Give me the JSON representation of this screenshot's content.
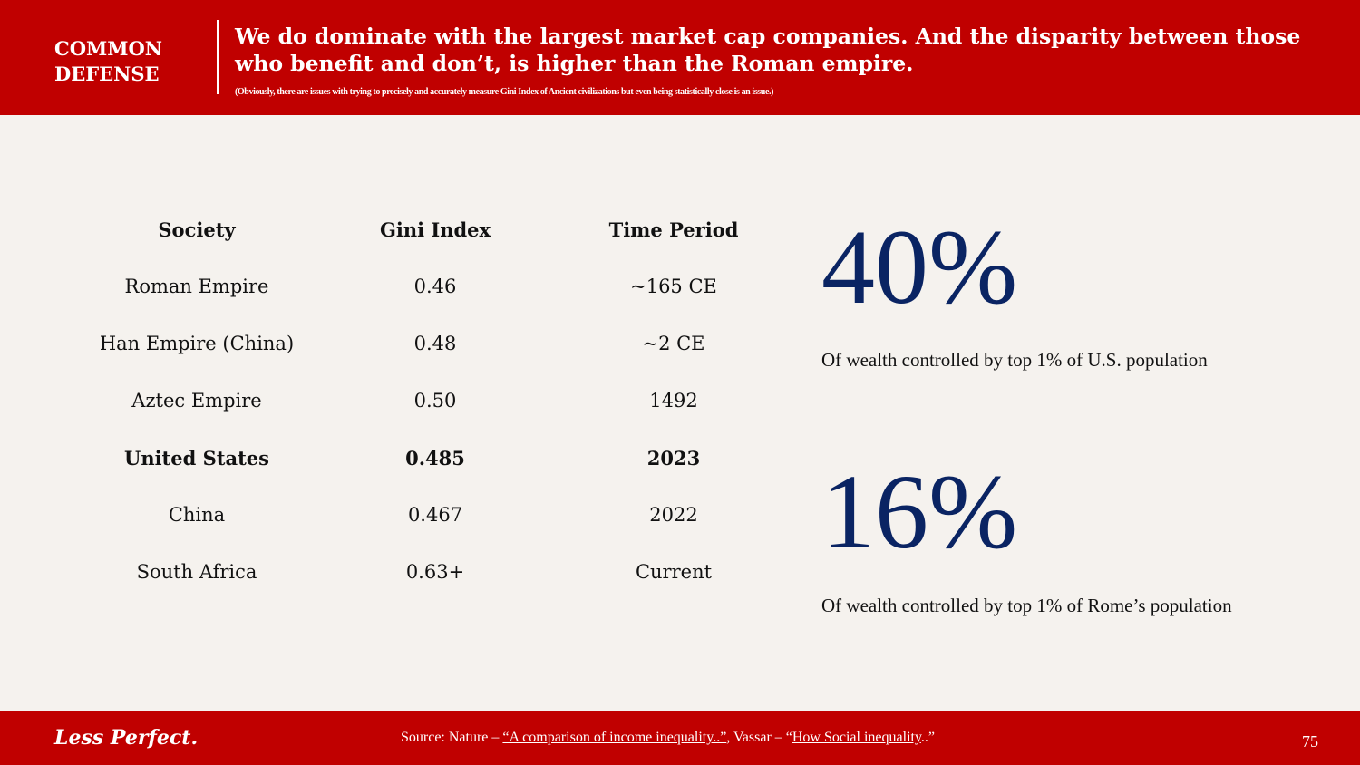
{
  "header": {
    "brand_line1": "COMMON",
    "brand_line2": "DEFENSE",
    "title": "We do dominate with the largest market cap companies. And the disparity between those who benefit and don’t, is higher than the Roman empire.",
    "subtitle": "(Obviously, there are issues with trying to precisely and accurately measure Gini Index of Ancient civilizations but even being statistically close is an issue.)"
  },
  "table": {
    "headers": [
      "Society",
      "Gini Index",
      "Time Period"
    ],
    "rows": [
      [
        "Roman Empire",
        "0.46",
        "~165 CE"
      ],
      [
        "Han Empire (China)",
        "0.48",
        "~2 CE"
      ],
      [
        "Aztec Empire",
        "0.50",
        "1492"
      ],
      [
        "United States",
        "0.485",
        "2023"
      ],
      [
        "China",
        "0.467",
        "2022"
      ],
      [
        "South Africa",
        "0.63+",
        "Current"
      ]
    ]
  },
  "stats": [
    {
      "value": "40%",
      "caption": "Of wealth controlled by top 1% of U.S. population"
    },
    {
      "value": "16%",
      "caption": "Of wealth controlled by top 1% of Rome’s population"
    }
  ],
  "footer": {
    "logo": "Less Perfect.",
    "source_prefix": "Source: Nature – ",
    "link1": "“A comparison of income inequality..”",
    "source_mid": ", Vassar – “",
    "link2": "How Social inequality",
    "source_end": "..”",
    "page": "75"
  }
}
